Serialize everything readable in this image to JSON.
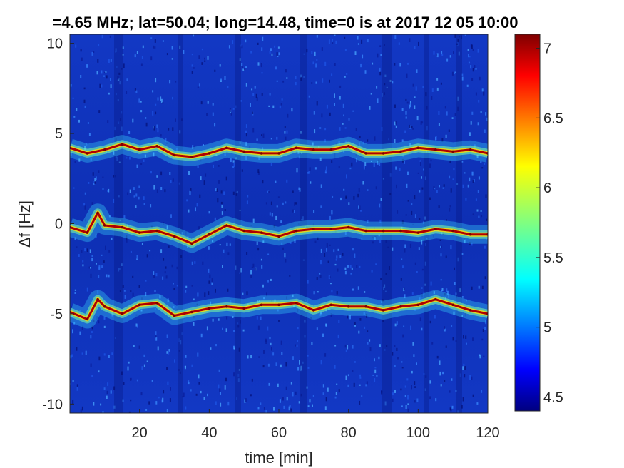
{
  "chart_data": {
    "type": "heatmap",
    "title": "=4.65 MHz;  lat=50.04; long=14.48, time=0 is at 2017 12 05 10:00",
    "xlabel": "time [min]",
    "ylabel": "Δf [Hz]",
    "xlim": [
      0,
      120
    ],
    "ylim": [
      -10.5,
      10.5
    ],
    "xticks": [
      20,
      40,
      60,
      80,
      100,
      120
    ],
    "xtick_labels": [
      "20",
      "40",
      "60",
      "80",
      "100",
      "120"
    ],
    "yticks": [
      10,
      5,
      0,
      -5,
      -10
    ],
    "ytick_labels": [
      "10",
      "5",
      "0",
      "-5",
      "-10"
    ],
    "colorbar": {
      "range": [
        4.4,
        7.1
      ],
      "ticks": [
        7,
        6.5,
        6,
        5.5,
        5,
        4.5
      ],
      "tick_labels": [
        "7",
        "6.5",
        "6",
        "5.5",
        "5",
        "4.5"
      ],
      "colormap": "jet"
    },
    "grid": false,
    "series": [
      {
        "name": "",
        "x": [
          0,
          5,
          10,
          15,
          20,
          25,
          30,
          35,
          40,
          45,
          50,
          55,
          60,
          65,
          70,
          75,
          80,
          85,
          90,
          95,
          100,
          105,
          110,
          115,
          120
        ],
        "y": [
          4.2,
          3.9,
          4.1,
          4.4,
          4.1,
          4.3,
          3.8,
          3.7,
          3.9,
          4.2,
          4.0,
          3.9,
          3.9,
          4.2,
          4.1,
          4.1,
          4.3,
          3.9,
          3.9,
          4.0,
          4.2,
          4.1,
          4.0,
          4.1,
          3.9
        ]
      },
      {
        "name": "",
        "x": [
          0,
          5,
          8,
          10,
          15,
          20,
          25,
          30,
          35,
          40,
          45,
          50,
          55,
          60,
          65,
          70,
          75,
          80,
          85,
          90,
          95,
          100,
          105,
          110,
          115,
          120
        ],
        "y": [
          -0.2,
          -0.5,
          0.6,
          -0.1,
          -0.2,
          -0.5,
          -0.4,
          -0.7,
          -1.1,
          -0.6,
          -0.1,
          -0.4,
          -0.5,
          -0.7,
          -0.4,
          -0.3,
          -0.3,
          -0.2,
          -0.4,
          -0.4,
          -0.4,
          -0.5,
          -0.3,
          -0.4,
          -0.6,
          -0.6
        ]
      },
      {
        "name": "",
        "x": [
          0,
          5,
          8,
          10,
          15,
          20,
          25,
          30,
          35,
          40,
          45,
          50,
          55,
          60,
          65,
          70,
          75,
          80,
          85,
          90,
          95,
          100,
          105,
          110,
          115,
          120
        ],
        "y": [
          -4.9,
          -5.3,
          -4.2,
          -4.6,
          -5.0,
          -4.5,
          -4.4,
          -5.1,
          -4.9,
          -4.7,
          -4.6,
          -4.7,
          -4.5,
          -4.5,
          -4.4,
          -4.8,
          -4.5,
          -4.6,
          -4.6,
          -4.8,
          -4.6,
          -4.5,
          -4.2,
          -4.5,
          -4.8,
          -5.0
        ]
      }
    ]
  }
}
